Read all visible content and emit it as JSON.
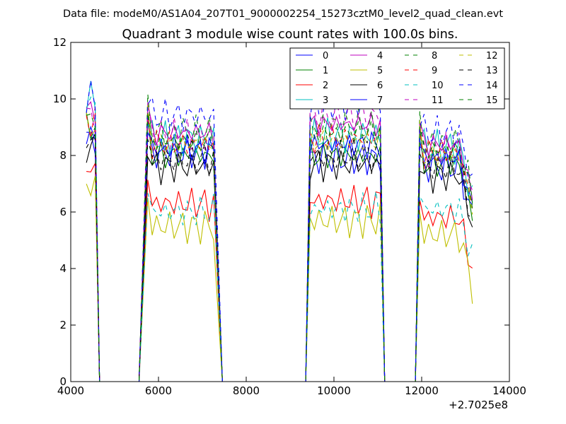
{
  "suptitle": "Data file: modeM0/AS1A04_207T01_9000002254_15273cztM0_level2_quad_clean.evt",
  "chart_data": {
    "type": "line",
    "title": "Quadrant 3 module wise count rates with 100.0s bins.",
    "xlabel": "",
    "ylabel": "",
    "x_offset_label": "+2.7025e8",
    "xlim": [
      4000,
      14000
    ],
    "ylim": [
      0,
      12
    ],
    "x_ticks": [
      4000,
      6000,
      8000,
      10000,
      12000,
      14000
    ],
    "x_tick_labels": [
      "4000",
      "6000",
      "8000",
      "10000",
      "12000",
      "14000"
    ],
    "y_ticks": [
      0,
      2,
      4,
      6,
      8,
      10,
      12
    ],
    "y_tick_labels": [
      "0",
      "2",
      "4",
      "6",
      "8",
      "10",
      "12"
    ],
    "grid": false,
    "legend_position": "top-right",
    "legend_columns": 4,
    "segments": [
      {
        "start": 4356,
        "end": 4556,
        "bins": 3
      },
      {
        "start": 5756,
        "end": 7256,
        "bins": 16
      },
      {
        "start": 9456,
        "end": 11056,
        "bins": 17
      },
      {
        "start": 11956,
        "end": 13156,
        "bins": 13
      }
    ],
    "gap_bins": [
      4656,
      5556,
      7456,
      9356,
      11156,
      11856
    ],
    "series": [
      {
        "name": "0",
        "color": "#0000ff",
        "dash": "solid",
        "mean": [
          8.6,
          8.1,
          7.9,
          7.6
        ]
      },
      {
        "name": "1",
        "color": "#008000",
        "dash": "solid",
        "mean": [
          8.9,
          8.0,
          8.0,
          7.7
        ]
      },
      {
        "name": "2",
        "color": "#ff0000",
        "dash": "solid",
        "mean": [
          7.5,
          6.3,
          6.4,
          5.8
        ]
      },
      {
        "name": "3",
        "color": "#00bfbf",
        "dash": "solid",
        "mean": [
          10.0,
          8.6,
          8.7,
          8.3
        ]
      },
      {
        "name": "4",
        "color": "#bf00bf",
        "dash": "solid",
        "mean": [
          9.6,
          8.8,
          9.1,
          8.4
        ]
      },
      {
        "name": "5",
        "color": "#bfbf00",
        "dash": "solid",
        "mean": [
          6.9,
          5.5,
          5.7,
          5.2
        ]
      },
      {
        "name": "6",
        "color": "#000000",
        "dash": "solid",
        "mean": [
          8.3,
          7.6,
          7.7,
          7.3
        ]
      },
      {
        "name": "7",
        "color": "#0000ff",
        "dash": "solid",
        "mean": [
          8.7,
          8.2,
          8.4,
          7.9
        ]
      },
      {
        "name": "8",
        "color": "#008000",
        "dash": "dashed",
        "mean": [
          9.0,
          8.8,
          9.0,
          8.4
        ]
      },
      {
        "name": "9",
        "color": "#ff0000",
        "dash": "dashed",
        "mean": [
          9.2,
          8.4,
          8.6,
          8.1
        ]
      },
      {
        "name": "10",
        "color": "#00bfbf",
        "dash": "dashed",
        "mean": [
          9.9,
          6.0,
          6.1,
          6.1
        ]
      },
      {
        "name": "11",
        "color": "#bf00bf",
        "dash": "dashed",
        "mean": [
          9.4,
          8.7,
          9.4,
          8.2
        ]
      },
      {
        "name": "12",
        "color": "#bfbf00",
        "dash": "dashed",
        "mean": [
          9.0,
          8.4,
          8.5,
          8.0
        ]
      },
      {
        "name": "13",
        "color": "#000000",
        "dash": "dashed",
        "mean": [
          8.5,
          7.9,
          8.0,
          7.6
        ]
      },
      {
        "name": "14",
        "color": "#0000ff",
        "dash": "dashed",
        "mean": [
          10.0,
          9.4,
          9.8,
          8.8
        ]
      },
      {
        "name": "15",
        "color": "#008000",
        "dash": "dashed",
        "mean": [
          9.3,
          8.5,
          8.8,
          8.2
        ]
      }
    ]
  }
}
